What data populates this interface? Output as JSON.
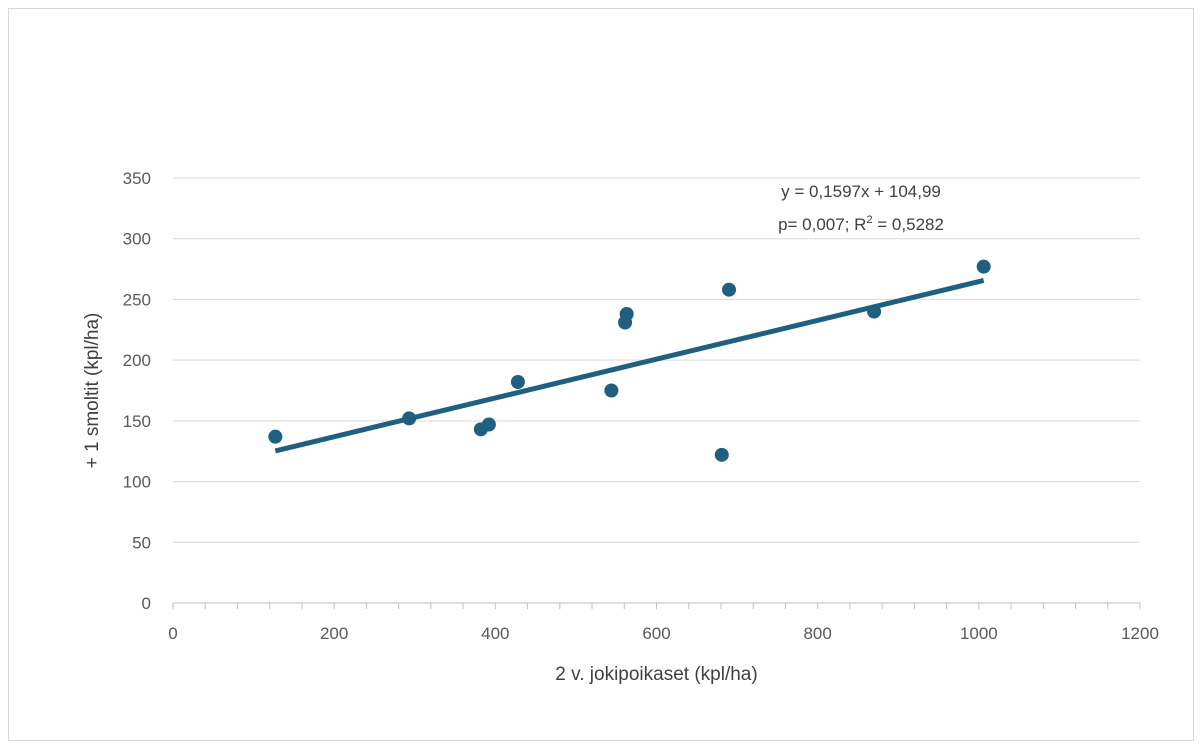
{
  "chart_data": {
    "type": "scatter",
    "xlabel": "2 v. jokipoikaset (kpl/ha)",
    "ylabel": "+ 1 smoltit (kpl/ha)",
    "xlim": [
      0,
      1200
    ],
    "ylim": [
      0,
      350
    ],
    "x_ticks": [
      "0",
      "200",
      "400",
      "600",
      "800",
      "1000",
      "1200"
    ],
    "y_ticks": [
      "0",
      "50",
      "100",
      "150",
      "200",
      "250",
      "300",
      "350"
    ],
    "x_tick_values": [
      0,
      200,
      400,
      600,
      800,
      1000,
      1200
    ],
    "y_tick_values": [
      0,
      50,
      100,
      150,
      200,
      250,
      300,
      350
    ],
    "grid": true,
    "series": [
      {
        "points": [
          {
            "x": 127,
            "y": 137
          },
          {
            "x": 293,
            "y": 152
          },
          {
            "x": 382,
            "y": 143
          },
          {
            "x": 392,
            "y": 147
          },
          {
            "x": 428,
            "y": 182
          },
          {
            "x": 544,
            "y": 175
          },
          {
            "x": 561,
            "y": 231
          },
          {
            "x": 563,
            "y": 238
          },
          {
            "x": 681,
            "y": 122
          },
          {
            "x": 690,
            "y": 258
          },
          {
            "x": 870,
            "y": 240
          },
          {
            "x": 1006,
            "y": 277
          }
        ],
        "color": "#1f5f7f"
      }
    ],
    "trendline": {
      "slope": 0.1597,
      "intercept": 104.99,
      "x_range": [
        127,
        1006
      ],
      "color": "#1f5f7f"
    },
    "annotation": {
      "line1": "y = 0,1597x + 104,99",
      "line2_prefix": "p= 0,007; R",
      "line2_sup": "2",
      "line2_suffix": " = 0,5282"
    }
  }
}
